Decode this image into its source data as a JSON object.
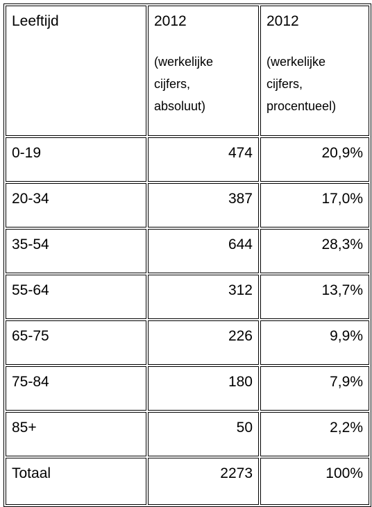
{
  "table": {
    "header": [
      {
        "title": "Leeftijd"
      },
      {
        "title": "2012",
        "lines": [
          "(werkelijke",
          "cijfers,",
          "absoluut)"
        ]
      },
      {
        "title": "2012",
        "lines": [
          "(werkelijke",
          "cijfers,",
          "procentueel)"
        ]
      }
    ],
    "rows": [
      [
        "0-19",
        "474",
        "20,9%"
      ],
      [
        "20-34",
        "387",
        "17,0%"
      ],
      [
        "35-54",
        "644",
        "28,3%"
      ],
      [
        "55-64",
        "312",
        "13,7%"
      ],
      [
        "65-75",
        "226",
        "9,9%"
      ],
      [
        "75-84",
        "180",
        "7,9%"
      ],
      [
        "85+",
        "50",
        "2,2%"
      ],
      [
        "Totaal",
        "2273",
        "100%"
      ]
    ]
  }
}
